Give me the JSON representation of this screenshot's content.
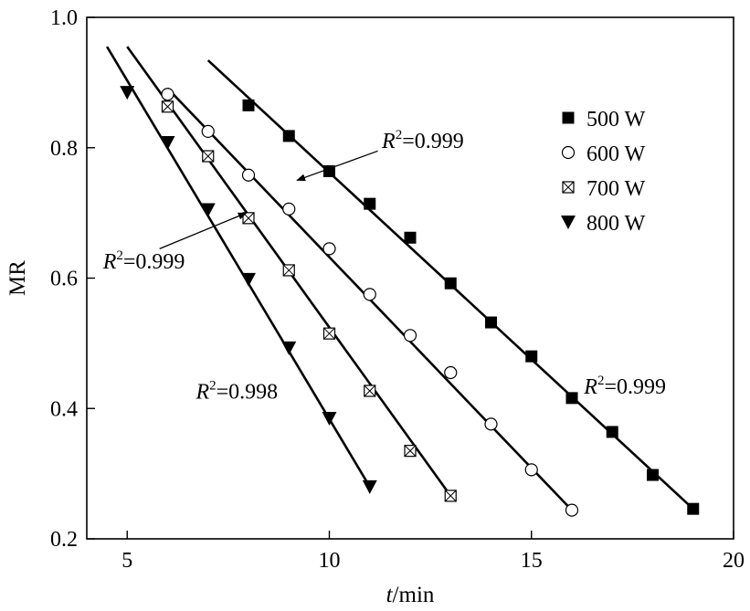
{
  "chart_data": {
    "type": "scatter",
    "xlabel": {
      "italic": "t",
      "rest": "/min"
    },
    "ylabel": "MR",
    "xlim": [
      4,
      20
    ],
    "ylim": [
      0.2,
      1.0
    ],
    "x_ticks": [
      5,
      10,
      15,
      20
    ],
    "x_tick_labels": [
      "5",
      "10",
      "15",
      "20"
    ],
    "y_ticks": [
      0.2,
      0.4,
      0.6,
      0.8,
      1.0
    ],
    "y_tick_labels": [
      "0.2",
      "0.4",
      "0.6",
      "0.8",
      "1.0"
    ],
    "grid": false,
    "legend_position": "top-right",
    "series": [
      {
        "name": "500 W",
        "marker": "square-filled",
        "x": [
          8,
          9,
          10,
          11,
          12,
          13,
          14,
          15,
          16,
          17,
          18,
          19
        ],
        "y": [
          0.865,
          0.818,
          0.764,
          0.714,
          0.662,
          0.592,
          0.532,
          0.48,
          0.416,
          0.364,
          0.298,
          0.246
        ],
        "fit": {
          "x": [
            7,
            19
          ],
          "y": [
            0.934,
            0.246
          ]
        }
      },
      {
        "name": "600 W",
        "marker": "circle-open",
        "x": [
          6,
          7,
          8,
          9,
          10,
          11,
          12,
          13,
          14,
          15,
          16
        ],
        "y": [
          0.882,
          0.825,
          0.758,
          0.706,
          0.645,
          0.575,
          0.512,
          0.455,
          0.376,
          0.306,
          0.244
        ],
        "fit": {
          "x": [
            6,
            16
          ],
          "y": [
            0.891,
            0.244
          ]
        }
      },
      {
        "name": "700 W",
        "marker": "square-crossed",
        "x": [
          6,
          7,
          8,
          9,
          10,
          11,
          12,
          13
        ],
        "y": [
          0.863,
          0.787,
          0.692,
          0.612,
          0.515,
          0.427,
          0.335,
          0.266
        ],
        "fit": {
          "x": [
            5,
            13
          ],
          "y": [
            0.955,
            0.266
          ]
        }
      },
      {
        "name": "800 W",
        "marker": "triangle-down-filled",
        "x": [
          5,
          6,
          7,
          8,
          9,
          10,
          11
        ],
        "y": [
          0.885,
          0.808,
          0.705,
          0.598,
          0.493,
          0.385,
          0.28
        ],
        "fit": {
          "x": [
            4.5,
            11
          ],
          "y": [
            0.955,
            0.28
          ]
        }
      }
    ],
    "annotations": [
      {
        "text": "=0.999",
        "x": 11.3,
        "y": 0.8,
        "arrow_from": [
          11.2,
          0.795
        ],
        "arrow_to": [
          9.2,
          0.75
        ]
      },
      {
        "text": "=0.999",
        "x": 4.4,
        "y": 0.615,
        "arrow_from": [
          5.8,
          0.645
        ],
        "arrow_to": [
          7.95,
          0.7
        ]
      },
      {
        "text": "=0.998",
        "x": 6.7,
        "y": 0.415
      },
      {
        "text": "=0.999",
        "x": 16.3,
        "y": 0.423
      }
    ],
    "annotation_prefix": "R",
    "annotation_superscript": "2"
  }
}
